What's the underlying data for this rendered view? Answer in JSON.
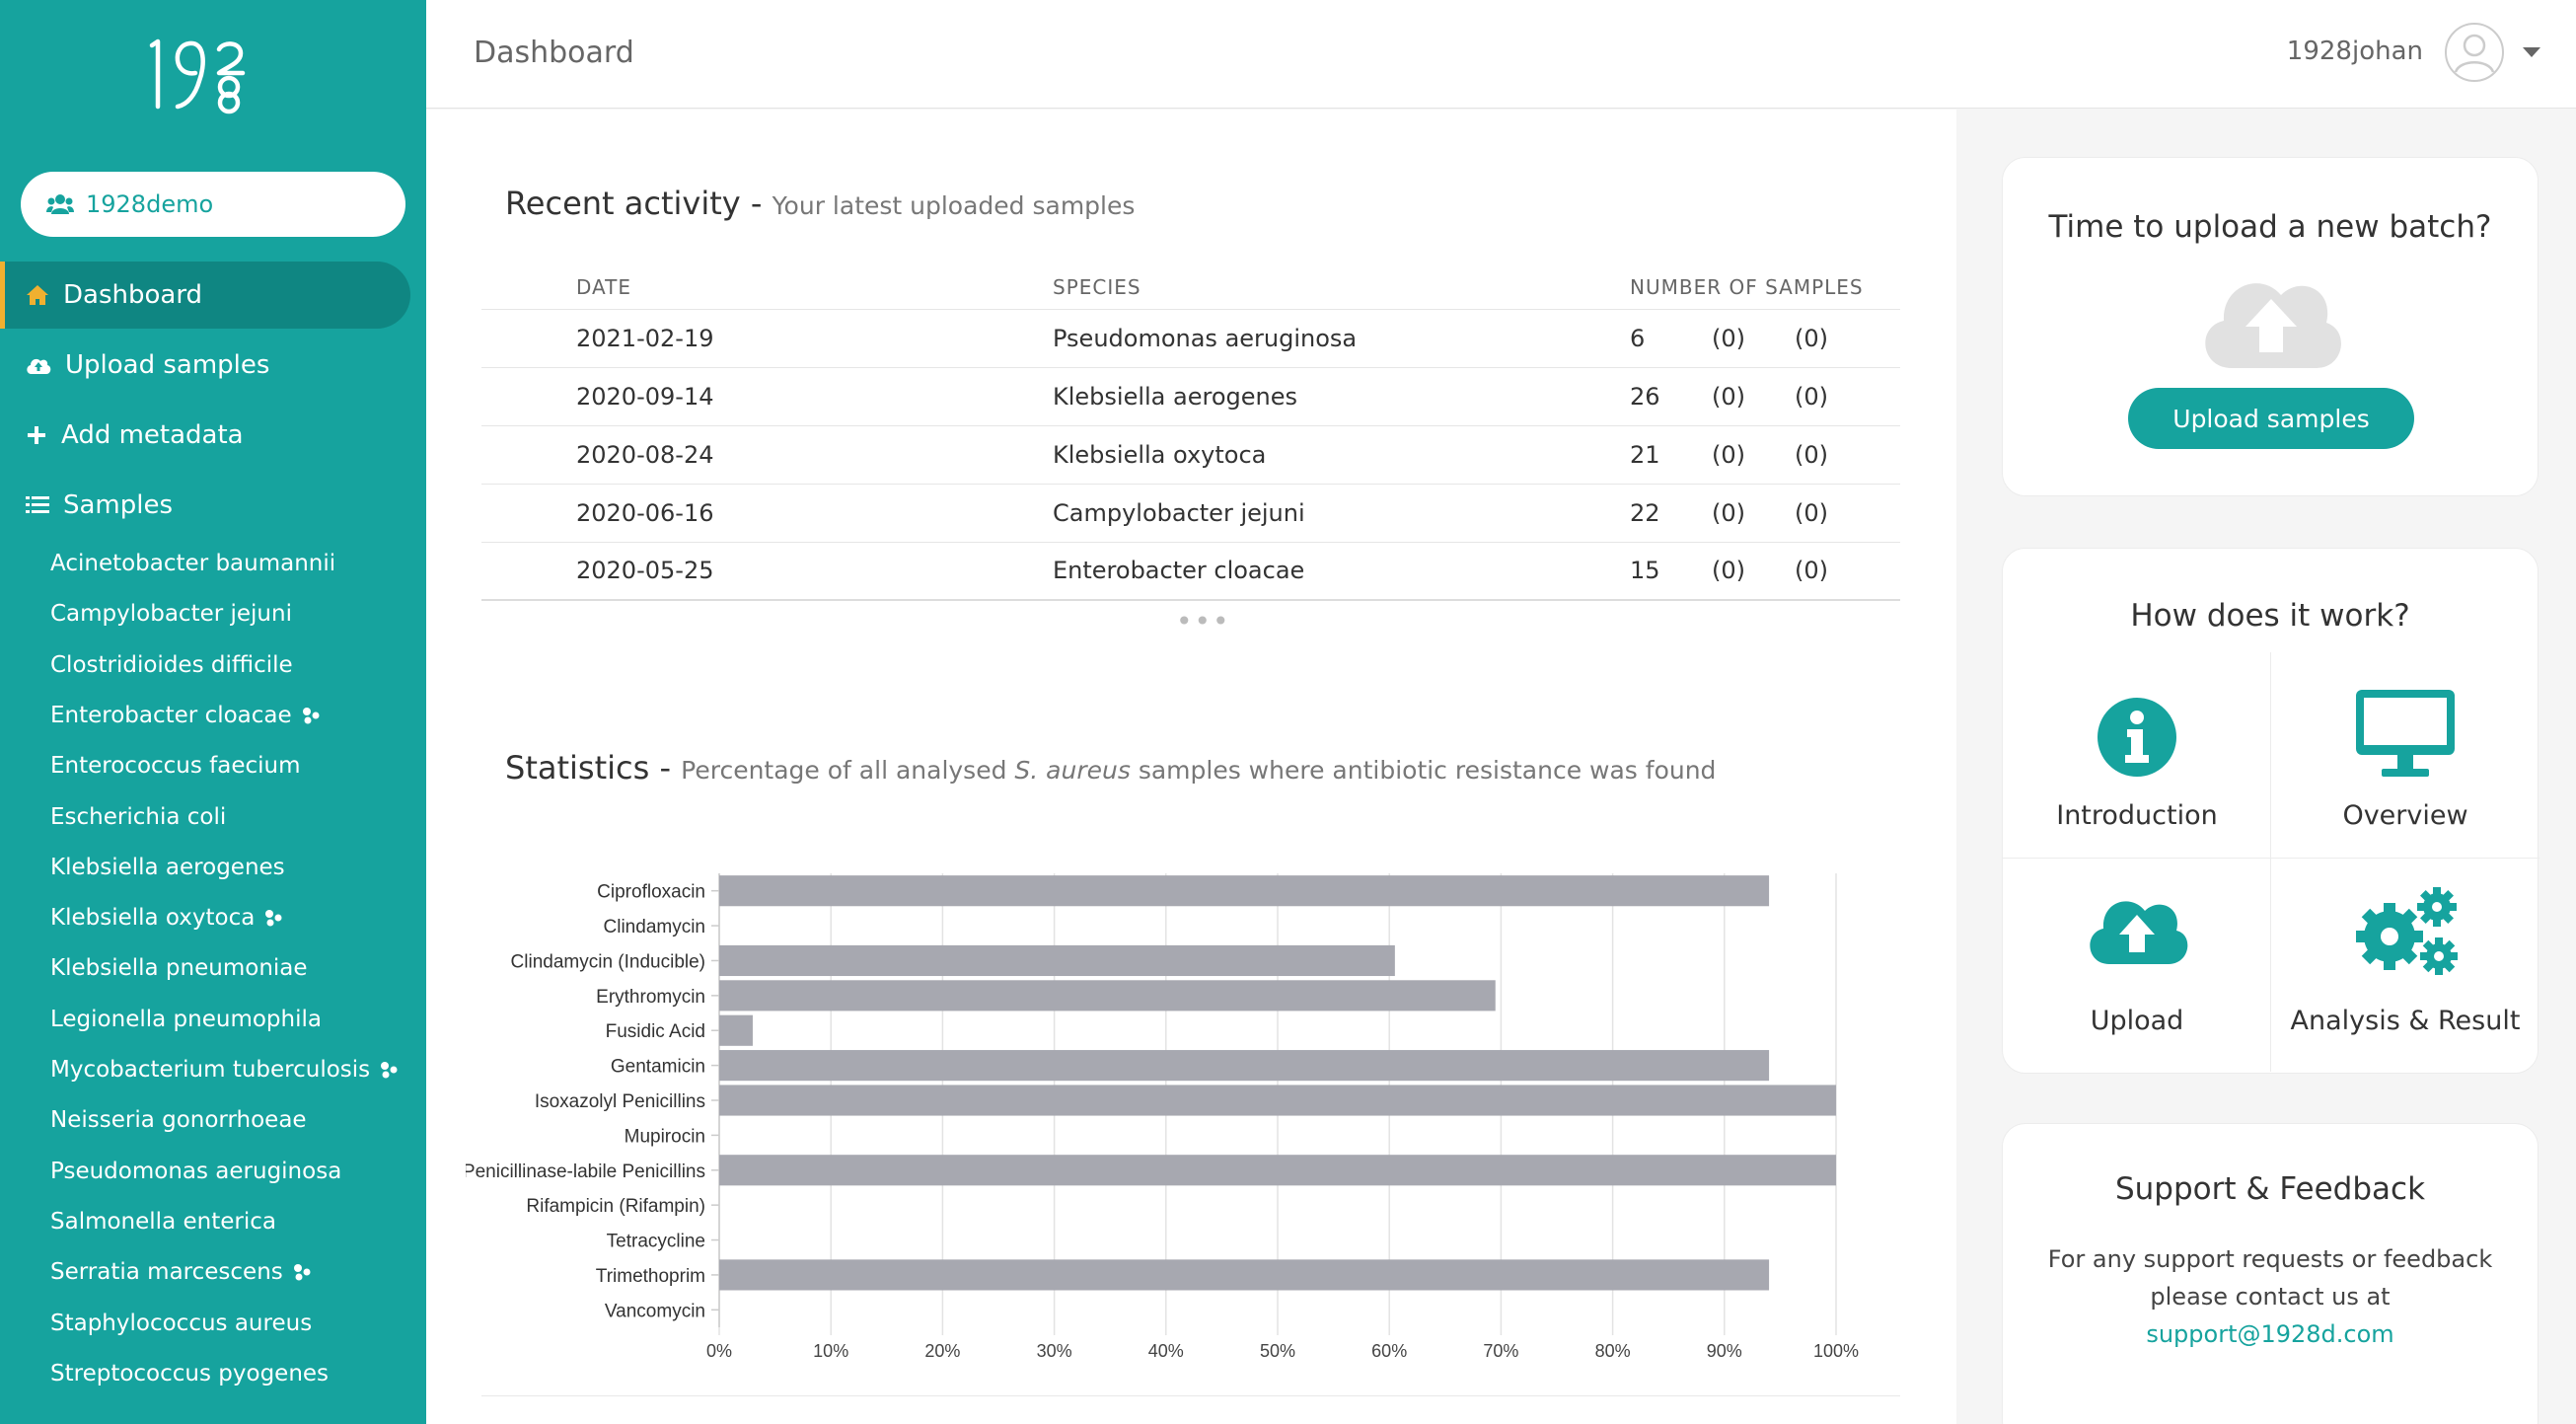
{
  "sidebar": {
    "org": "1928demo",
    "nav": [
      {
        "label": "Dashboard",
        "icon": "home-icon"
      },
      {
        "label": "Upload samples",
        "icon": "cloud-upload-icon"
      },
      {
        "label": "Add metadata",
        "icon": "plus-icon"
      },
      {
        "label": "Samples",
        "icon": "list-icon"
      }
    ],
    "samples": [
      {
        "label": "Acinetobacter baumannii",
        "shared": false
      },
      {
        "label": "Campylobacter jejuni",
        "shared": false
      },
      {
        "label": "Clostridioides difficile",
        "shared": false
      },
      {
        "label": "Enterobacter cloacae",
        "shared": true
      },
      {
        "label": "Enterococcus faecium",
        "shared": false
      },
      {
        "label": "Escherichia coli",
        "shared": false
      },
      {
        "label": "Klebsiella aerogenes",
        "shared": false
      },
      {
        "label": "Klebsiella oxytoca",
        "shared": true
      },
      {
        "label": "Klebsiella pneumoniae",
        "shared": false
      },
      {
        "label": "Legionella pneumophila",
        "shared": false
      },
      {
        "label": "Mycobacterium tuberculosis",
        "shared": true
      },
      {
        "label": "Neisseria gonorrhoeae",
        "shared": false
      },
      {
        "label": "Pseudomonas aeruginosa",
        "shared": false
      },
      {
        "label": "Salmonella enterica",
        "shared": false
      },
      {
        "label": "Serratia marcescens",
        "shared": true
      },
      {
        "label": "Staphylococcus aureus",
        "shared": false
      },
      {
        "label": "Streptococcus pyogenes",
        "shared": false
      }
    ]
  },
  "header": {
    "title": "Dashboard",
    "user": "1928johan"
  },
  "recent": {
    "title": "Recent activity",
    "subtitle": "Your latest uploaded samples",
    "columns": [
      "DATE",
      "SPECIES",
      "NUMBER OF SAMPLES"
    ],
    "rows": [
      {
        "date": "2021-02-19",
        "species": "Pseudomonas aeruginosa",
        "count": "6",
        "red": "(0)",
        "grey": "(0)"
      },
      {
        "date": "2020-09-14",
        "species": "Klebsiella aerogenes",
        "count": "26",
        "red": "(0)",
        "grey": "(0)"
      },
      {
        "date": "2020-08-24",
        "species": "Klebsiella oxytoca",
        "count": "21",
        "red": "(0)",
        "grey": "(0)"
      },
      {
        "date": "2020-06-16",
        "species": "Campylobacter jejuni",
        "count": "22",
        "red": "(0)",
        "grey": "(0)"
      },
      {
        "date": "2020-05-25",
        "species": "Enterobacter cloacae",
        "count": "15",
        "red": "(0)",
        "grey": "(0)"
      }
    ],
    "more": "•••"
  },
  "stats": {
    "title": "Statistics",
    "subtitle_pre": "Percentage of all analysed ",
    "subtitle_em": "S. aureus",
    "subtitle_post": " samples where antibiotic resistance was found"
  },
  "chart_data": {
    "type": "bar",
    "orientation": "horizontal",
    "categories": [
      "Ciprofloxacin",
      "Clindamycin",
      "Clindamycin (Inducible)",
      "Erythromycin",
      "Fusidic Acid",
      "Gentamicin",
      "Isoxazolyl Penicillins",
      "Mupirocin",
      "Penicillinase-labile Penicillins",
      "Rifampicin (Rifampin)",
      "Tetracycline",
      "Trimethoprim",
      "Vancomycin"
    ],
    "values": [
      94,
      0,
      60.5,
      69.5,
      3,
      94,
      100,
      0,
      100,
      0,
      0,
      94,
      0
    ],
    "xlim": [
      0,
      100
    ],
    "xticks": [
      "0%",
      "10%",
      "20%",
      "30%",
      "40%",
      "50%",
      "60%",
      "70%",
      "80%",
      "90%",
      "100%"
    ],
    "grid": true,
    "bar_color": "#a7a8b0"
  },
  "cards": {
    "upload": {
      "title": "Time to upload a new batch?",
      "button": "Upload samples"
    },
    "how": {
      "title": "How does it work?",
      "items": [
        {
          "label": "Introduction",
          "icon": "info-icon"
        },
        {
          "label": "Overview",
          "icon": "monitor-icon"
        },
        {
          "label": "Upload",
          "icon": "cloud-upload-icon"
        },
        {
          "label": "Analysis & Result",
          "icon": "gears-icon"
        }
      ]
    },
    "support": {
      "title": "Support & Feedback",
      "line1": "For any support requests or feedback",
      "line2": "please contact us at",
      "email": "support@1928d.com"
    }
  },
  "colors": {
    "brand": "#16a39e",
    "active": "#0f8682",
    "accent": "#f0b030",
    "alert": "#d9363e"
  }
}
